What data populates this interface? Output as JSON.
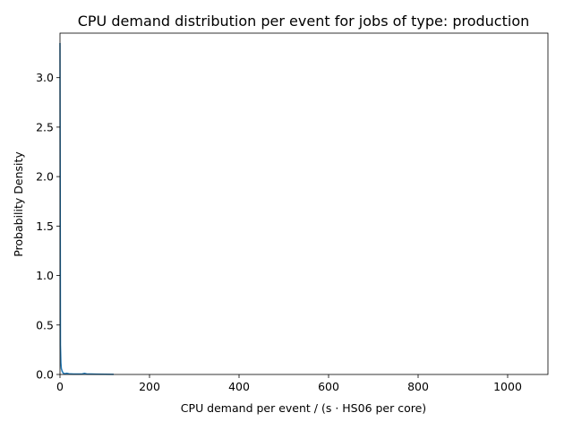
{
  "chart_data": {
    "type": "line",
    "title": "CPU demand distribution per event for jobs of type: production",
    "xlabel": "CPU demand per event / (s · HS06 per core)",
    "ylabel": "Probability Density",
    "xlim": [
      0,
      1090
    ],
    "ylim": [
      0,
      3.45
    ],
    "xticks": [
      0,
      200,
      400,
      600,
      800,
      1000
    ],
    "yticks": [
      0.0,
      0.5,
      1.0,
      1.5,
      2.0,
      2.5,
      3.0
    ],
    "xtick_labels": [
      "0",
      "200",
      "400",
      "600",
      "800",
      "1000"
    ],
    "ytick_labels": [
      "0.0",
      "0.5",
      "1.0",
      "1.5",
      "2.0",
      "2.5",
      "3.0"
    ],
    "grid": false,
    "series": [
      {
        "color": "#1f77b4",
        "x": [
          0,
          1,
          2,
          3,
          5,
          8,
          12,
          15,
          20,
          30,
          40,
          50,
          55,
          60,
          70,
          80,
          100,
          120
        ],
        "y": [
          3.35,
          0.3,
          0.12,
          0.06,
          0.03,
          0.01,
          0.008,
          0.012,
          0.007,
          0.005,
          0.004,
          0.006,
          0.011,
          0.005,
          0.004,
          0.003,
          0.002,
          0.001
        ]
      }
    ]
  }
}
